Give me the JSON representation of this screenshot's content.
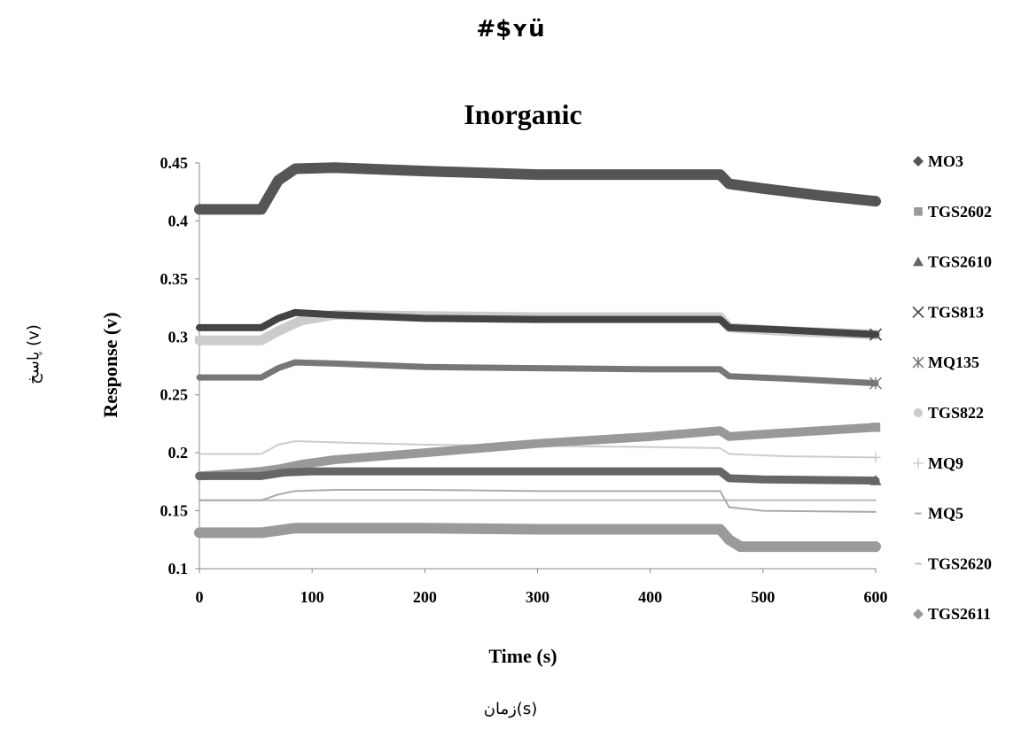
{
  "page": {
    "garbled_title": "#$ʏü",
    "persian_ylabel": "پاسخ (v)",
    "persian_xlabel": "زمان(s)"
  },
  "chart_data": {
    "type": "line",
    "title": "Inorganic",
    "xlabel": "Time (s)",
    "ylabel": "Response (v)",
    "xlim": [
      0,
      600
    ],
    "ylim": [
      0.1,
      0.45
    ],
    "xticks": [
      "0",
      "100",
      "200",
      "300",
      "400",
      "500",
      "600"
    ],
    "yticks": [
      "0.1",
      "0.15",
      "0.2",
      "0.25",
      "0.3",
      "0.35",
      "0.4",
      "0.45"
    ],
    "grid": false,
    "legend_position": "right",
    "series": [
      {
        "name": "MO3",
        "marker": "diamond",
        "color": "#555555",
        "x": [
          0,
          55,
          70,
          85,
          120,
          200,
          300,
          400,
          462,
          470,
          500,
          550,
          600
        ],
        "y": [
          0.41,
          0.41,
          0.435,
          0.445,
          0.446,
          0.443,
          0.44,
          0.44,
          0.44,
          0.432,
          0.428,
          0.422,
          0.417
        ]
      },
      {
        "name": "TGS2602",
        "marker": "square",
        "color": "#999999",
        "x": [
          0,
          30,
          55,
          70,
          90,
          120,
          160,
          200,
          250,
          300,
          400,
          462,
          470,
          500,
          550,
          600
        ],
        "y": [
          0.18,
          0.182,
          0.184,
          0.186,
          0.19,
          0.194,
          0.197,
          0.2,
          0.204,
          0.208,
          0.214,
          0.219,
          0.214,
          0.216,
          0.219,
          0.222
        ]
      },
      {
        "name": "TGS2610",
        "marker": "triangle",
        "color": "#666666",
        "x": [
          0,
          55,
          75,
          100,
          200,
          300,
          400,
          462,
          470,
          500,
          600
        ],
        "y": [
          0.18,
          0.18,
          0.183,
          0.184,
          0.184,
          0.184,
          0.184,
          0.184,
          0.178,
          0.177,
          0.176
        ]
      },
      {
        "name": "TGS813",
        "marker": "x",
        "color": "#444444",
        "x": [
          0,
          55,
          70,
          85,
          120,
          200,
          300,
          400,
          462,
          470,
          520,
          600
        ],
        "y": [
          0.308,
          0.308,
          0.316,
          0.321,
          0.319,
          0.316,
          0.315,
          0.315,
          0.315,
          0.308,
          0.306,
          0.302
        ]
      },
      {
        "name": "MQ135",
        "marker": "asterisk",
        "color": "#777777",
        "x": [
          0,
          55,
          70,
          85,
          120,
          200,
          300,
          400,
          462,
          470,
          520,
          600
        ],
        "y": [
          0.265,
          0.265,
          0.273,
          0.278,
          0.277,
          0.274,
          0.273,
          0.272,
          0.272,
          0.266,
          0.264,
          0.26
        ]
      },
      {
        "name": "TGS822",
        "marker": "circle",
        "color": "#cccccc",
        "x": [
          0,
          55,
          70,
          90,
          120,
          200,
          300,
          400,
          462,
          470,
          520,
          600
        ],
        "y": [
          0.297,
          0.297,
          0.305,
          0.314,
          0.319,
          0.318,
          0.317,
          0.317,
          0.317,
          0.308,
          0.305,
          0.302
        ]
      },
      {
        "name": "MQ9",
        "marker": "plus",
        "color": "#cccccc",
        "x": [
          0,
          55,
          70,
          85,
          120,
          200,
          300,
          400,
          462,
          470,
          520,
          600
        ],
        "y": [
          0.199,
          0.199,
          0.207,
          0.21,
          0.209,
          0.207,
          0.206,
          0.205,
          0.204,
          0.199,
          0.197,
          0.196
        ]
      },
      {
        "name": "MQ5",
        "marker": "dash",
        "color": "#aaaaaa",
        "x": [
          0,
          55,
          70,
          85,
          120,
          200,
          300,
          400,
          462,
          470,
          500,
          600
        ],
        "y": [
          0.159,
          0.159,
          0.164,
          0.167,
          0.168,
          0.168,
          0.167,
          0.167,
          0.167,
          0.153,
          0.15,
          0.149
        ]
      },
      {
        "name": "TGS2620",
        "marker": "dash",
        "color": "#bbbbbb",
        "x": [
          0,
          600
        ],
        "y": [
          0.159,
          0.159
        ]
      },
      {
        "name": "TGS2611",
        "marker": "diamond",
        "color": "#9a9a9a",
        "x": [
          0,
          55,
          70,
          85,
          120,
          200,
          300,
          400,
          462,
          470,
          480,
          520,
          600
        ],
        "y": [
          0.131,
          0.131,
          0.133,
          0.135,
          0.135,
          0.135,
          0.134,
          0.134,
          0.134,
          0.125,
          0.119,
          0.119,
          0.119
        ]
      }
    ]
  }
}
